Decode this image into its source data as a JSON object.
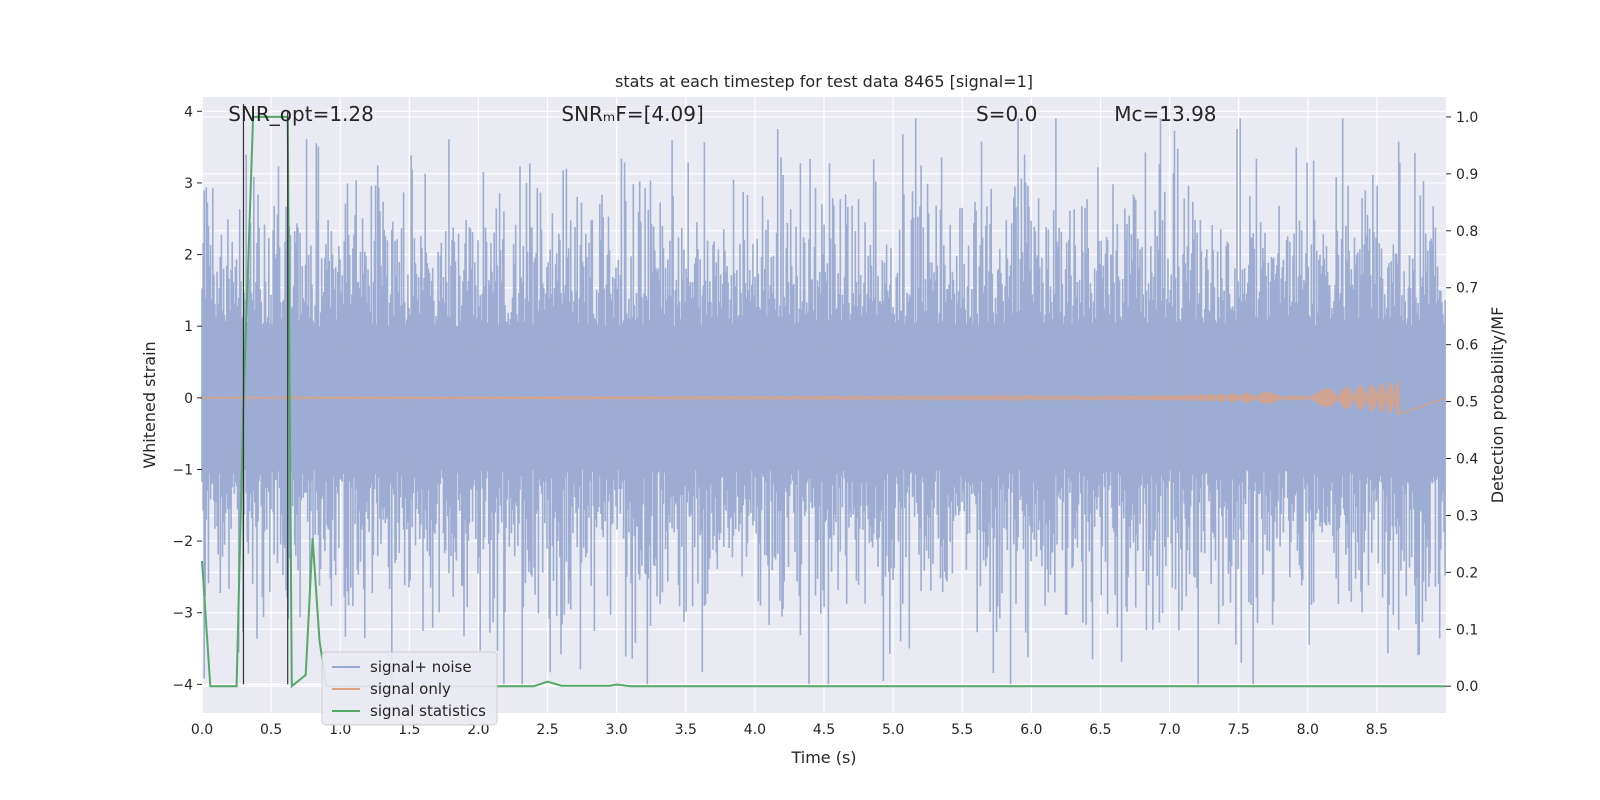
{
  "chart_data": {
    "type": "line",
    "title": "stats at each timestep for test data 8465 [signal=1]",
    "xlabel": "Time (s)",
    "ylabel_left": "Whitened strain",
    "ylabel_right": "Detection probability/MF",
    "xlim": [
      0.0,
      9.0
    ],
    "ylim_left": [
      -4.4,
      4.2
    ],
    "ylim_right": [
      -0.047,
      1.035
    ],
    "x_ticks": [
      0.0,
      0.5,
      1.0,
      1.5,
      2.0,
      2.5,
      3.0,
      3.5,
      4.0,
      4.5,
      5.0,
      5.5,
      6.0,
      6.5,
      7.0,
      7.5,
      8.0,
      8.5
    ],
    "x_tick_labels": [
      "0.0",
      "0.5",
      "1.0",
      "1.5",
      "2.0",
      "2.5",
      "3.0",
      "3.5",
      "4.0",
      "4.5",
      "5.0",
      "5.5",
      "6.0",
      "6.5",
      "7.0",
      "7.5",
      "8.0",
      "8.5"
    ],
    "y_left_ticks": [
      -4,
      -3,
      -2,
      -1,
      0,
      1,
      2,
      3,
      4
    ],
    "y_left_tick_labels": [
      "−4",
      "−3",
      "−2",
      "−1",
      "0",
      "1",
      "2",
      "3",
      "4"
    ],
    "y_right_ticks": [
      0.0,
      0.1,
      0.2,
      0.3,
      0.4,
      0.5,
      0.6,
      0.7,
      0.8,
      0.9,
      1.0
    ],
    "y_right_tick_labels": [
      "0.0",
      "0.1",
      "0.2",
      "0.3",
      "0.4",
      "0.5",
      "0.6",
      "0.7",
      "0.8",
      "0.9",
      "1.0"
    ],
    "annotations": [
      {
        "name": "snr-opt",
        "text": "SNR_opt=1.28",
        "x": 0.19,
        "y": 3.95
      },
      {
        "name": "snr-mf",
        "text": "SNRₘF=[4.09]",
        "x": 2.6,
        "y": 3.95
      },
      {
        "name": "s-value",
        "text": "S=0.0",
        "x": 5.6,
        "y": 3.95
      },
      {
        "name": "mc-value",
        "text": "Mᴄ=13.98",
        "x": 6.6,
        "y": 3.95
      }
    ],
    "vertical_markers": [
      {
        "x": 0.3,
        "y_from": -4.0,
        "y_to": 4.1
      },
      {
        "x": 0.62,
        "y_from": -4.0,
        "y_to": 4.0
      }
    ],
    "series": [
      {
        "name": "signal+ noise",
        "color": "#98a9d0",
        "axis": "left",
        "style": "noise",
        "envelope_sigma": 0.9,
        "sample_dt": 0.0078
      },
      {
        "name": "signal only",
        "color": "#d9a287",
        "axis": "left",
        "style": "chirp",
        "x_end": 8.66,
        "peak_amplitude": 0.22
      },
      {
        "name": "signal statistics",
        "color": "#55a868",
        "axis": "right",
        "x": [
          0.0,
          0.06,
          0.25,
          0.3,
          0.37,
          0.62,
          0.65,
          0.7,
          0.75,
          0.8,
          0.85,
          0.9,
          1.0,
          2.4,
          2.5,
          2.6,
          2.95,
          3.0,
          3.1,
          9.0
        ],
        "y": [
          0.22,
          0.0,
          0.0,
          0.5,
          1.0,
          1.0,
          0.0,
          0.01,
          0.02,
          0.26,
          0.08,
          0.0,
          0.0,
          0.0,
          0.008,
          0.001,
          0.001,
          0.003,
          0.0,
          0.0
        ]
      }
    ],
    "legend": {
      "location": "lower-left",
      "entries": [
        "signal+ noise",
        "signal only",
        "signal statistics"
      ]
    },
    "grid": true
  }
}
